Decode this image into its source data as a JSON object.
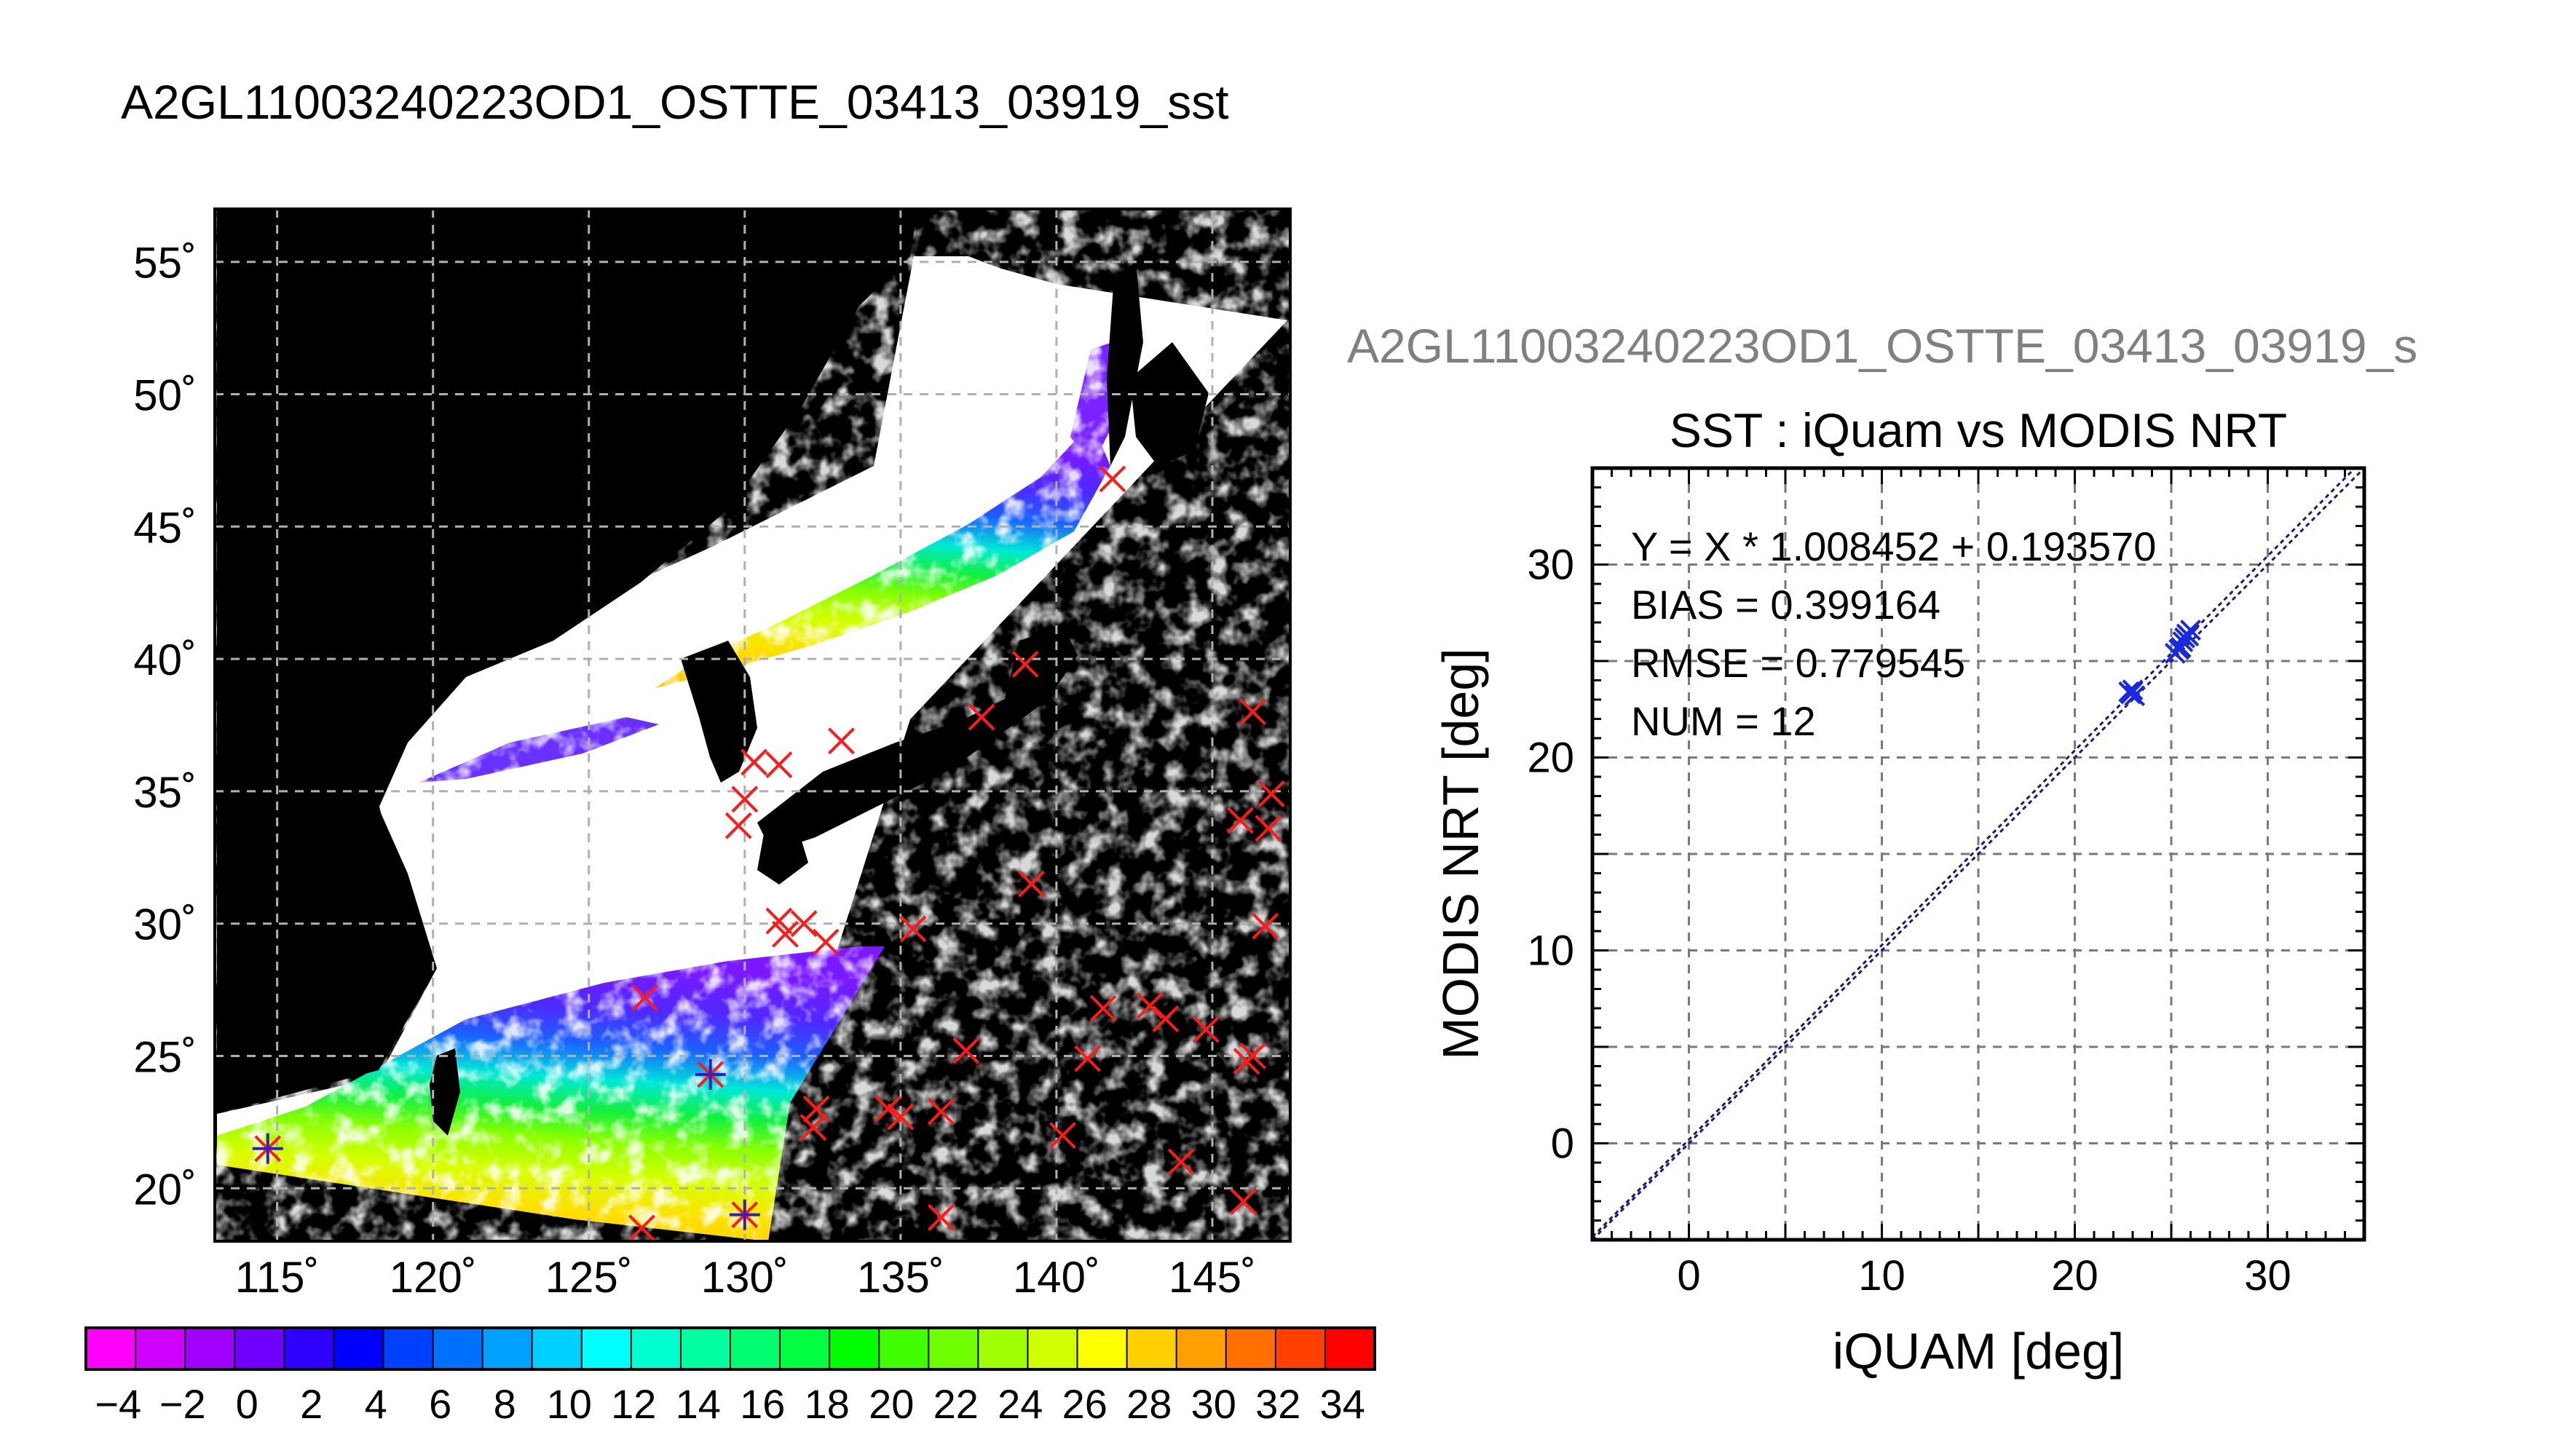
{
  "header": {
    "title": "A2GL11003240223OD1_OSTTE_03413_03919_sst"
  },
  "map_panel": {
    "lat_labels": [
      "55˚",
      "50˚",
      "45˚",
      "40˚",
      "35˚",
      "30˚",
      "25˚",
      "20˚"
    ],
    "lon_labels": [
      "115˚",
      "120˚",
      "125˚",
      "130˚",
      "135˚",
      "140˚",
      "145˚"
    ]
  },
  "colorbar": {
    "tick_labels": [
      "−4",
      "−2",
      "0",
      "2",
      "4",
      "6",
      "8",
      "10",
      "12",
      "14",
      "16",
      "18",
      "20",
      "22",
      "24",
      "26",
      "28",
      "30",
      "32",
      "34"
    ],
    "colors": [
      "#ff00ff",
      "#d000ff",
      "#a000ff",
      "#7000ff",
      "#3000ff",
      "#0000ff",
      "#0040ff",
      "#0070ff",
      "#00a0ff",
      "#00d0ff",
      "#00ffff",
      "#00ffd0",
      "#00ffa0",
      "#00ff70",
      "#00ff40",
      "#00ff00",
      "#40ff00",
      "#70ff00",
      "#a0ff00",
      "#d0ff00",
      "#ffff00",
      "#ffd000",
      "#ffa000",
      "#ff7000",
      "#ff4000",
      "#ff0000"
    ]
  },
  "scatter_panel": {
    "overflow_title": "A2GL11003240223OD1_OSTTE_03413_03919_s",
    "stats": {
      "equation": "Y = X * 1.008452 + 0.193570",
      "bias": "BIAS = 0.399164",
      "rmse": "RMSE = 0.779545",
      "num": "NUM = 12"
    }
  },
  "chart_data": [
    {
      "type": "scatter",
      "title": "SST : iQuam vs MODIS NRT",
      "xlabel": "iQUAM [deg]",
      "ylabel": "MODIS NRT [deg]",
      "xlim": [
        -5,
        35
      ],
      "ylim": [
        -5,
        35
      ],
      "x_ticks": [
        0,
        10,
        20,
        30
      ],
      "y_ticks": [
        0,
        10,
        20,
        30
      ],
      "grid": true,
      "fit_line": {
        "slope": 1.008452,
        "intercept": 0.19357
      },
      "series": [
        {
          "values": [
            {
              "x": 22.8,
              "y": 23.4
            },
            {
              "x": 22.9,
              "y": 23.3
            },
            {
              "x": 23.0,
              "y": 23.5
            },
            {
              "x": 25.2,
              "y": 25.4
            },
            {
              "x": 25.4,
              "y": 25.6
            },
            {
              "x": 25.5,
              "y": 25.7
            },
            {
              "x": 25.7,
              "y": 26.2
            },
            {
              "x": 25.8,
              "y": 26.4
            },
            {
              "x": 25.9,
              "y": 26.3
            },
            {
              "x": 26.0,
              "y": 26.6
            },
            {
              "x": 25.6,
              "y": 26.0
            },
            {
              "x": 23.1,
              "y": 23.2
            }
          ]
        }
      ]
    },
    {
      "type": "heatmap",
      "lon_range": [
        113,
        147.5
      ],
      "lat_range": [
        18,
        57
      ],
      "lon_ticks": [
        115,
        120,
        125,
        130,
        135,
        140,
        145
      ],
      "lat_ticks": [
        20,
        25,
        30,
        35,
        40,
        45,
        50,
        55
      ],
      "grid": true,
      "colorbar_range": [
        -5,
        35
      ],
      "red_x_markers": [
        {
          "lon": 141.8,
          "lat": 46.8
        },
        {
          "lon": 139.0,
          "lat": 39.8
        },
        {
          "lon": 137.6,
          "lat": 37.8
        },
        {
          "lon": 133.1,
          "lat": 36.9
        },
        {
          "lon": 130.3,
          "lat": 36.1
        },
        {
          "lon": 131.1,
          "lat": 36.0
        },
        {
          "lon": 130.0,
          "lat": 34.7
        },
        {
          "lon": 129.8,
          "lat": 33.7
        },
        {
          "lon": 131.1,
          "lat": 30.1
        },
        {
          "lon": 131.3,
          "lat": 29.6
        },
        {
          "lon": 131.9,
          "lat": 30.0
        },
        {
          "lon": 132.6,
          "lat": 29.3
        },
        {
          "lon": 135.4,
          "lat": 29.8
        },
        {
          "lon": 139.2,
          "lat": 31.5
        },
        {
          "lon": 146.3,
          "lat": 38.0
        },
        {
          "lon": 146.9,
          "lat": 34.9
        },
        {
          "lon": 145.9,
          "lat": 33.9
        },
        {
          "lon": 146.8,
          "lat": 33.6
        },
        {
          "lon": 146.7,
          "lat": 29.9
        },
        {
          "lon": 126.8,
          "lat": 27.2
        },
        {
          "lon": 132.3,
          "lat": 23.0
        },
        {
          "lon": 132.2,
          "lat": 22.3
        },
        {
          "lon": 134.6,
          "lat": 23.0
        },
        {
          "lon": 135.0,
          "lat": 22.7
        },
        {
          "lon": 136.3,
          "lat": 22.9
        },
        {
          "lon": 137.1,
          "lat": 25.2
        },
        {
          "lon": 141.5,
          "lat": 26.8
        },
        {
          "lon": 141.0,
          "lat": 24.9
        },
        {
          "lon": 143.0,
          "lat": 26.9
        },
        {
          "lon": 143.5,
          "lat": 26.4
        },
        {
          "lon": 144.8,
          "lat": 26.0
        },
        {
          "lon": 146.3,
          "lat": 25.0
        },
        {
          "lon": 146.1,
          "lat": 24.8
        },
        {
          "lon": 140.2,
          "lat": 22.0
        },
        {
          "lon": 144.0,
          "lat": 21.0
        },
        {
          "lon": 146.0,
          "lat": 19.5
        },
        {
          "lon": 136.3,
          "lat": 18.9
        },
        {
          "lon": 126.7,
          "lat": 18.5
        }
      ],
      "match_markers": [
        {
          "lon": 114.7,
          "lat": 21.5
        },
        {
          "lon": 128.9,
          "lat": 24.3
        },
        {
          "lon": 130.0,
          "lat": 19.0
        }
      ]
    }
  ]
}
